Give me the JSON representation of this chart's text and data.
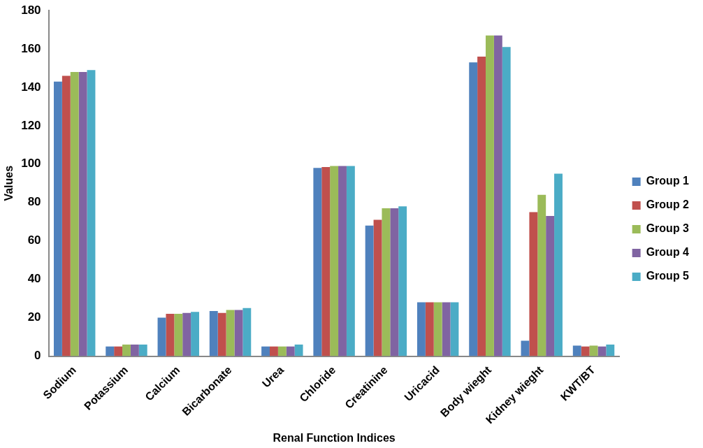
{
  "chart_data": {
    "type": "bar",
    "xlabel": "Renal Function Indices",
    "ylabel": "Values",
    "categories": [
      "Sodium",
      "Potassium",
      "Calcium",
      "Bicarbonate",
      "Urea",
      "Chloride",
      "Creatinine",
      "Uricacid",
      "Body wieght",
      "Kidney wieght",
      "KWT/BT"
    ],
    "series": [
      {
        "name": "Group 1",
        "color": "#4f81bd",
        "values": [
          143,
          5,
          20,
          23.5,
          5,
          98,
          68,
          28,
          153,
          8,
          5.5
        ]
      },
      {
        "name": "Group 2",
        "color": "#c0504d",
        "values": [
          146,
          5,
          22,
          22.5,
          5,
          98.5,
          71,
          28,
          156,
          75,
          5
        ]
      },
      {
        "name": "Group 3",
        "color": "#9bbb59",
        "values": [
          148,
          6,
          22,
          24,
          5,
          99,
          77,
          28,
          167,
          84,
          5.5
        ]
      },
      {
        "name": "Group 4",
        "color": "#8064a2",
        "values": [
          148,
          6,
          22.5,
          24,
          5,
          99,
          77,
          28,
          167,
          73,
          5
        ]
      },
      {
        "name": "Group 5",
        "color": "#4bacc6",
        "values": [
          149,
          6,
          23,
          25,
          6,
          99,
          78,
          28,
          161,
          95,
          6
        ]
      }
    ],
    "ylim": [
      0,
      180
    ],
    "yticks": [
      0,
      20,
      40,
      60,
      80,
      100,
      120,
      140,
      160,
      180
    ],
    "grid": false,
    "legend": "right"
  }
}
